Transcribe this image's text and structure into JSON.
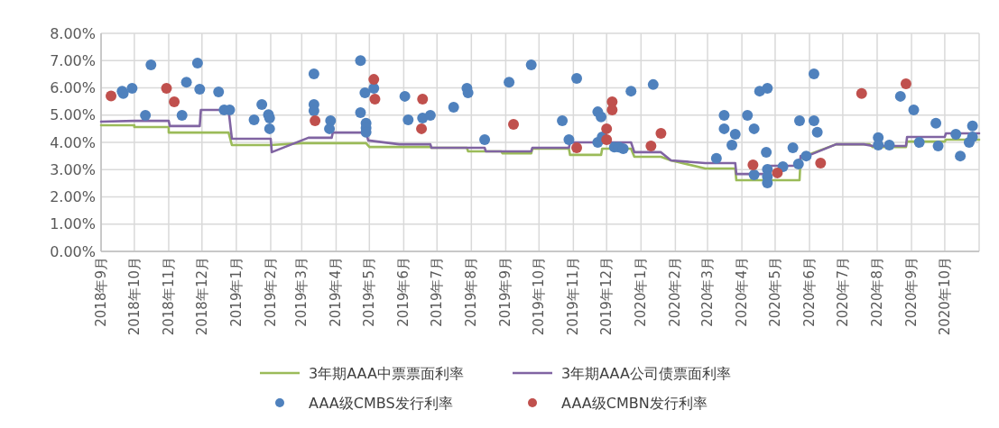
{
  "chart_data": {
    "type": "scatter",
    "xlim": [
      "2018-09",
      "2020-11"
    ],
    "xticks": [
      {
        "value": "2018-09",
        "label": "2018年9月"
      },
      {
        "value": "2018-10",
        "label": "2018年10月"
      },
      {
        "value": "2018-11",
        "label": "2018年11月"
      },
      {
        "value": "2018-12",
        "label": "2018年12月"
      },
      {
        "value": "2019-01",
        "label": "2019年1月"
      },
      {
        "value": "2019-02",
        "label": "2019年2月"
      },
      {
        "value": "2019-03",
        "label": "2019年3月"
      },
      {
        "value": "2019-04",
        "label": "2019年4月"
      },
      {
        "value": "2019-05",
        "label": "2019年5月"
      },
      {
        "value": "2019-06",
        "label": "2019年6月"
      },
      {
        "value": "2019-07",
        "label": "2019年7月"
      },
      {
        "value": "2019-08",
        "label": "2019年8月"
      },
      {
        "value": "2019-09",
        "label": "2019年9月"
      },
      {
        "value": "2019-10",
        "label": "2019年10月"
      },
      {
        "value": "2019-11",
        "label": "2019年11月"
      },
      {
        "value": "2019-12",
        "label": "2019年12月"
      },
      {
        "value": "2020-01",
        "label": "2020年1月"
      },
      {
        "value": "2020-02",
        "label": "2020年2月"
      },
      {
        "value": "2020-03",
        "label": "2020年3月"
      },
      {
        "value": "2020-04",
        "label": "2020年4月"
      },
      {
        "value": "2020-05",
        "label": "2020年5月"
      },
      {
        "value": "2020-06",
        "label": "2020年6月"
      },
      {
        "value": "2020-07",
        "label": "2020年7月"
      },
      {
        "value": "2020-08",
        "label": "2020年8月"
      },
      {
        "value": "2020-09",
        "label": "2020年9月"
      },
      {
        "value": "2020-10",
        "label": "2020年10月"
      }
    ],
    "ylim": [
      0,
      8
    ],
    "yticks": [
      {
        "value": 0,
        "label": "0.00%"
      },
      {
        "value": 1,
        "label": "1.00%"
      },
      {
        "value": 2,
        "label": "2.00%"
      },
      {
        "value": 3,
        "label": "3.00%"
      },
      {
        "value": 4,
        "label": "4.00%"
      },
      {
        "value": 5,
        "label": "5.00%"
      },
      {
        "value": 6,
        "label": "6.00%"
      },
      {
        "value": 7,
        "label": "7.00%"
      },
      {
        "value": 8,
        "label": "8.00%"
      }
    ],
    "grid": true,
    "legend": "bottom",
    "series": [
      {
        "name": "3年期AAA中票票面利率",
        "type": "line",
        "color": "#9bbb59",
        "x": [
          "2018-09-01",
          "2018-10-01",
          "2018-10-01",
          "2018-11-01",
          "2018-11-01",
          "2018-12-25",
          "2018-12-28",
          "2019-02-01",
          "2019-03-01",
          "2019-04-28",
          "2019-05-01",
          "2019-06-25",
          "2019-06-26",
          "2019-07-28",
          "2019-07-29",
          "2019-08-28",
          "2019-08-29",
          "2019-09-24",
          "2019-09-25",
          "2019-10-28",
          "2019-10-29",
          "2019-11-26",
          "2019-11-27",
          "2019-12-23",
          "2019-12-26",
          "2020-01-19",
          "2020-01-28",
          "2020-02-28",
          "2020-03-26",
          "2020-03-27",
          "2020-05-23",
          "2020-05-24",
          "2020-06-25",
          "2020-07-25",
          "2020-07-28",
          "2020-08-27",
          "2020-08-28",
          "2020-10-01",
          "2020-10-02",
          "2020-11-01"
        ],
        "values": [
          4.63,
          4.63,
          4.56,
          4.56,
          4.36,
          4.36,
          3.9,
          3.9,
          3.97,
          3.97,
          3.83,
          3.83,
          3.8,
          3.8,
          3.67,
          3.67,
          3.6,
          3.6,
          3.77,
          3.77,
          3.54,
          3.54,
          3.77,
          3.77,
          3.47,
          3.47,
          3.34,
          3.04,
          3.04,
          2.61,
          2.61,
          3.44,
          3.93,
          3.93,
          3.83,
          3.83,
          4.03,
          4.03,
          4.1,
          4.1
        ]
      },
      {
        "name": "3年期AAA公司债票面利率",
        "type": "line",
        "color": "#8064a2",
        "x": [
          "2018-09-01",
          "2018-10-01",
          "2018-11-01",
          "2018-11-02",
          "2018-11-29",
          "2018-11-30",
          "2018-12-25",
          "2018-12-28",
          "2019-02-01",
          "2019-02-02",
          "2019-03-07",
          "2019-03-28",
          "2019-03-29",
          "2019-04-28",
          "2019-04-30",
          "2019-05-28",
          "2019-06-25",
          "2019-06-26",
          "2019-08-13",
          "2019-08-14",
          "2019-09-24",
          "2019-09-25",
          "2019-10-28",
          "2019-10-29",
          "2019-12-23",
          "2019-12-26",
          "2020-01-19",
          "2020-01-28",
          "2020-02-28",
          "2020-03-26",
          "2020-03-27",
          "2020-04-23",
          "2020-04-24",
          "2020-05-23",
          "2020-05-24",
          "2020-05-30",
          "2020-06-25",
          "2020-07-20",
          "2020-07-28",
          "2020-08-27",
          "2020-08-28",
          "2020-10-01",
          "2020-10-02",
          "2020-11-01"
        ],
        "values": [
          4.76,
          4.79,
          4.79,
          4.6,
          4.6,
          5.19,
          5.19,
          4.13,
          4.13,
          3.64,
          4.17,
          4.17,
          4.36,
          4.36,
          4.07,
          3.93,
          3.93,
          3.8,
          3.8,
          3.67,
          3.67,
          3.8,
          3.8,
          4.0,
          4.0,
          3.64,
          3.64,
          3.34,
          3.24,
          3.24,
          2.84,
          2.84,
          3.14,
          3.14,
          3.5,
          3.5,
          3.93,
          3.93,
          3.87,
          3.87,
          4.2,
          4.2,
          4.33,
          4.33
        ]
      },
      {
        "name": "AAA级CMBS发行利率",
        "color": "#4f81bd",
        "x": [
          "2018-09-20",
          "2018-09-21",
          "2018-09-29",
          "2018-10-11",
          "2018-10-16",
          "2018-11-13",
          "2018-11-17",
          "2018-11-27",
          "2018-11-29",
          "2018-12-16",
          "2018-12-21",
          "2018-12-26",
          "2019-01-17",
          "2019-01-24",
          "2019-01-30",
          "2019-01-31",
          "2019-01-31",
          "2019-03-12",
          "2019-03-12",
          "2019-03-12",
          "2019-03-27",
          "2019-03-26",
          "2019-04-23",
          "2019-04-23",
          "2019-04-27",
          "2019-04-28",
          "2019-04-28",
          "2019-04-28",
          "2019-05-05",
          "2019-06-02",
          "2019-06-05",
          "2019-06-18",
          "2019-06-25",
          "2019-07-16",
          "2019-07-28",
          "2019-07-29",
          "2019-08-13",
          "2019-09-04",
          "2019-09-24",
          "2019-10-22",
          "2019-10-28",
          "2019-11-04",
          "2019-11-23",
          "2019-11-26",
          "2019-11-23",
          "2019-11-27",
          "2019-12-08",
          "2019-12-12",
          "2019-12-16",
          "2019-12-23",
          "2020-01-12",
          "2020-03-09",
          "2020-03-16",
          "2020-03-16",
          "2020-03-23",
          "2020-03-26",
          "2020-04-06",
          "2020-04-12",
          "2020-04-12",
          "2020-04-17",
          "2020-04-24",
          "2020-04-23",
          "2020-04-24",
          "2020-04-24",
          "2020-04-24",
          "2020-05-08",
          "2020-05-17",
          "2020-05-22",
          "2020-05-23",
          "2020-05-29",
          "2020-06-05",
          "2020-06-05",
          "2020-06-08",
          "2020-08-02",
          "2020-08-02",
          "2020-08-12",
          "2020-08-22",
          "2020-09-03",
          "2020-09-08",
          "2020-09-23",
          "2020-09-25",
          "2020-10-11",
          "2020-10-15",
          "2020-10-26",
          "2020-10-26",
          "2020-10-23"
        ],
        "values": [
          5.88,
          5.79,
          5.98,
          4.99,
          6.84,
          4.99,
          6.21,
          6.91,
          5.95,
          5.85,
          5.19,
          5.19,
          4.83,
          5.39,
          5.02,
          4.89,
          4.5,
          6.51,
          5.39,
          5.16,
          4.79,
          4.5,
          7.0,
          5.09,
          5.82,
          4.7,
          4.53,
          4.37,
          5.98,
          5.69,
          4.83,
          4.89,
          4.99,
          5.29,
          5.98,
          5.82,
          4.1,
          6.21,
          6.84,
          4.79,
          4.1,
          6.35,
          5.12,
          4.93,
          4.0,
          4.2,
          3.83,
          3.83,
          3.77,
          5.88,
          6.12,
          3.41,
          4.99,
          4.5,
          3.9,
          4.3,
          4.99,
          4.5,
          2.81,
          5.88,
          5.98,
          3.64,
          3.01,
          2.74,
          2.51,
          3.11,
          3.8,
          3.21,
          4.79,
          3.5,
          6.51,
          4.79,
          4.37,
          4.17,
          3.9,
          3.9,
          5.69,
          5.19,
          4.0,
          4.7,
          3.87,
          4.3,
          3.5,
          4.6,
          4.2,
          4.0
        ]
      },
      {
        "name": "AAA级CMBN发行利率",
        "color": "#c0504d",
        "x": [
          "2018-09-10",
          "2018-10-30",
          "2018-11-06",
          "2019-03-13",
          "2019-05-05",
          "2019-05-06",
          "2019-06-18",
          "2019-06-17",
          "2019-09-08",
          "2019-11-04",
          "2019-12-06",
          "2019-12-06",
          "2019-12-01",
          "2019-12-01",
          "2020-01-10",
          "2020-01-19",
          "2020-04-11",
          "2020-05-03",
          "2020-06-11",
          "2020-07-18",
          "2020-08-27"
        ],
        "values": [
          5.7,
          5.98,
          5.49,
          4.79,
          6.31,
          5.59,
          5.59,
          4.5,
          4.66,
          3.8,
          5.49,
          5.19,
          4.5,
          4.1,
          3.87,
          4.33,
          3.17,
          2.88,
          3.24,
          5.79,
          6.15
        ]
      }
    ]
  }
}
